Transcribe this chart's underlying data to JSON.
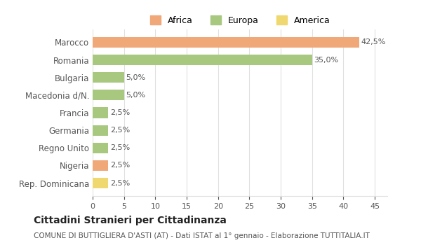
{
  "categories": [
    "Marocco",
    "Romania",
    "Bulgaria",
    "Macedonia d/N.",
    "Francia",
    "Germania",
    "Regno Unito",
    "Nigeria",
    "Rep. Dominicana"
  ],
  "values": [
    42.5,
    35.0,
    5.0,
    5.0,
    2.5,
    2.5,
    2.5,
    2.5,
    2.5
  ],
  "colors": [
    "#f0a878",
    "#a8c880",
    "#a8c880",
    "#a8c880",
    "#a8c880",
    "#a8c880",
    "#a8c880",
    "#f0a878",
    "#f0d870"
  ],
  "labels": [
    "42,5%",
    "35,0%",
    "5,0%",
    "5,0%",
    "2,5%",
    "2,5%",
    "2,5%",
    "2,5%",
    "2,5%"
  ],
  "legend": [
    {
      "label": "Africa",
      "color": "#f0a878"
    },
    {
      "label": "Europa",
      "color": "#a8c880"
    },
    {
      "label": "America",
      "color": "#f0d870"
    }
  ],
  "xlim": [
    0,
    47
  ],
  "xticks": [
    0,
    5,
    10,
    15,
    20,
    25,
    30,
    35,
    40,
    45
  ],
  "title": "Cittadini Stranieri per Cittadinanza",
  "subtitle": "COMUNE DI BUTTIGLIERA D'ASTI (AT) - Dati ISTAT al 1° gennaio - Elaborazione TUTTITALIA.IT",
  "background_color": "#ffffff",
  "grid_color": "#e0e0e0"
}
